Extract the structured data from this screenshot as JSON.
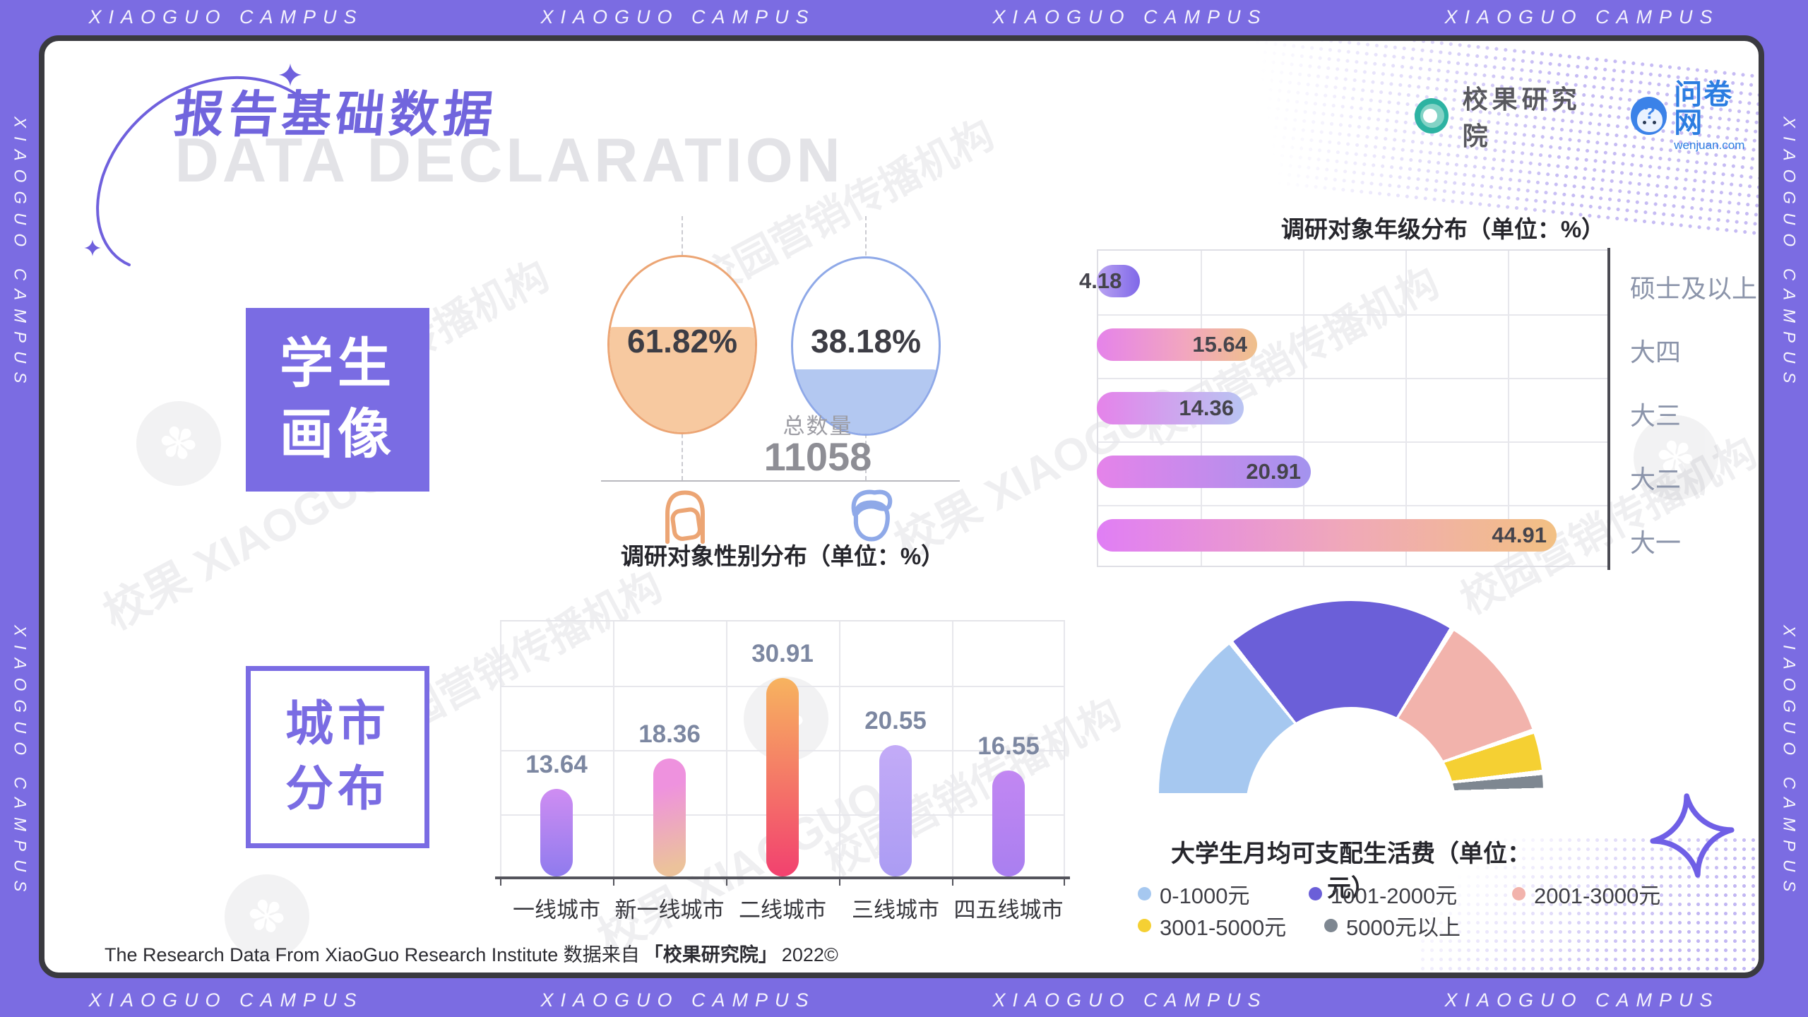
{
  "frame": {
    "banner": "XIAOGUO CAMPUS"
  },
  "watermarks": {
    "agency": "校园营销传播机构",
    "brand": "校果 XIAOGUO",
    "flower": "✽"
  },
  "header": {
    "title": "报告基础数据",
    "watermark_title": "DATA DECLARATION",
    "org1": "校果研究院",
    "org2": "问卷网",
    "org2_domain": "wenjuan.com",
    "org2_mark": "?"
  },
  "sections": {
    "student_line1": "学生",
    "student_line2": "画像",
    "city_line1": "城市",
    "city_line2": "分布"
  },
  "gender": {
    "female_pct": "61.82%",
    "male_pct": "38.18%",
    "total_label": "总数量",
    "total_value": "11058",
    "title": "调研对象性别分布（单位：%）"
  },
  "grade": {
    "title": "调研对象年级分布（单位：%）",
    "rows": [
      {
        "label": "硕士及以上",
        "value": "4.18"
      },
      {
        "label": "大四",
        "value": "15.64"
      },
      {
        "label": "大三",
        "value": "14.36"
      },
      {
        "label": "大二",
        "value": "20.91"
      },
      {
        "label": "大一",
        "value": "44.91"
      }
    ]
  },
  "city": {
    "bars": [
      {
        "label": "一线城市",
        "value": "13.64"
      },
      {
        "label": "新一线城市",
        "value": "18.36"
      },
      {
        "label": "二线城市",
        "value": "30.91"
      },
      {
        "label": "三线城市",
        "value": "20.55"
      },
      {
        "label": "四五线城市",
        "value": "16.55"
      }
    ]
  },
  "expense": {
    "title": "大学生月均可支配生活费（单位：元）",
    "legend": [
      {
        "label": "0-1000元",
        "color": "#a6c8f0"
      },
      {
        "label": "1001-2000元",
        "color": "#6b5fd8"
      },
      {
        "label": "2001-3000元",
        "color": "#f2b3ac"
      },
      {
        "label": "3001-5000元",
        "color": "#f5d033"
      },
      {
        "label": "5000元以上",
        "color": "#7e8791"
      }
    ]
  },
  "footer": {
    "text_en": "The Research Data From XiaoGuo Research Institute 数据来自",
    "text_brand": "「校果研究院」",
    "text_year": "2022©"
  },
  "chart_data": [
    {
      "type": "pie",
      "subtype": "filled-circle-pair",
      "title": "调研对象性别分布（单位：%）",
      "categories": [
        "female",
        "male"
      ],
      "values": [
        61.82,
        38.18
      ],
      "total_label": "总数量",
      "total": 11058,
      "colors": [
        "#f7c9a0",
        "#b3c8f1"
      ]
    },
    {
      "type": "bar",
      "orientation": "horizontal",
      "title": "调研对象年级分布（单位：%）",
      "categories": [
        "硕士及以上",
        "大四",
        "大三",
        "大二",
        "大一"
      ],
      "values": [
        4.18,
        15.64,
        14.36,
        20.91,
        44.91
      ],
      "xlim": [
        0,
        50
      ],
      "grid": true,
      "legend_position": "none"
    },
    {
      "type": "bar",
      "orientation": "vertical",
      "title": "城市分布",
      "categories": [
        "一线城市",
        "新一线城市",
        "二线城市",
        "三线城市",
        "四五线城市"
      ],
      "values": [
        13.64,
        18.36,
        30.91,
        20.55,
        16.55
      ],
      "ylim": [
        0,
        40
      ],
      "grid": true,
      "legend_position": "none"
    },
    {
      "type": "pie",
      "subtype": "half-donut",
      "title": "大学生月均可支配生活费（单位：元）",
      "categories": [
        "0-1000元",
        "1001-2000元",
        "2001-3000元",
        "3001-5000元",
        "5000元以上"
      ],
      "values_pct": [
        29,
        39,
        22,
        7,
        3
      ],
      "note": "slice percentages estimated from arc angles; no numeric labels shown",
      "colors": [
        "#a6c8f0",
        "#6b5fd8",
        "#f2b3ac",
        "#f5d033",
        "#7e8791"
      ],
      "legend_position": "bottom"
    }
  ]
}
